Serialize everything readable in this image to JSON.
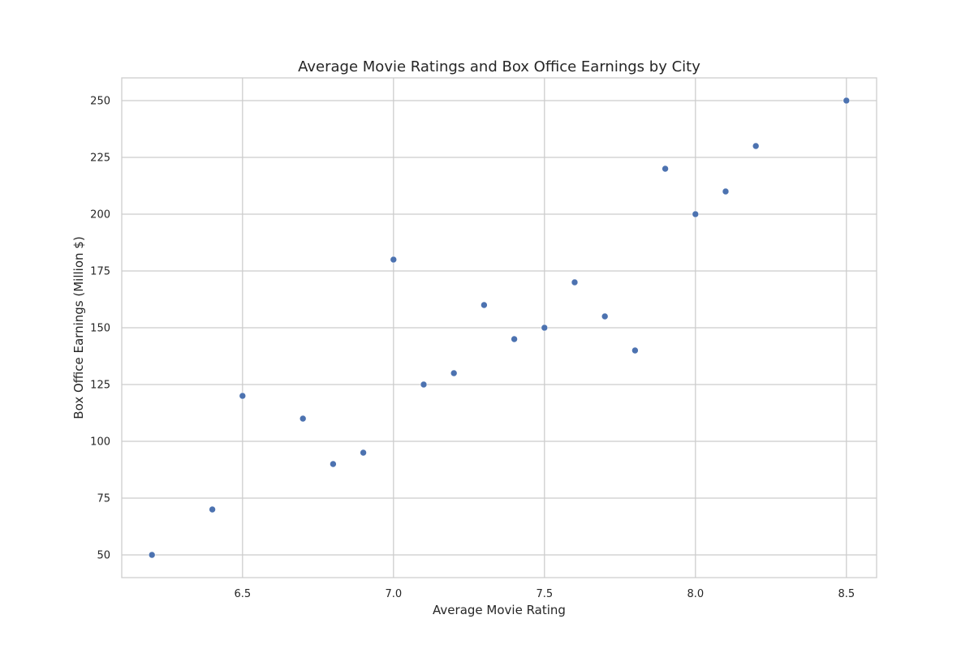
{
  "chart_data": {
    "type": "scatter",
    "title": "Average Movie Ratings and Box Office Earnings by City",
    "xlabel": "Average Movie Rating",
    "ylabel": "Box Office Earnings (Million $)",
    "xlim": [
      6.1,
      8.6
    ],
    "ylim": [
      40,
      260
    ],
    "xticks": [
      6.5,
      7.0,
      7.5,
      8.0,
      8.5
    ],
    "xtick_labels": [
      "6.5",
      "7.0",
      "7.5",
      "8.0",
      "8.5"
    ],
    "yticks": [
      50,
      75,
      100,
      125,
      150,
      175,
      200,
      225,
      250
    ],
    "ytick_labels": [
      "50",
      "75",
      "100",
      "125",
      "150",
      "175",
      "200",
      "225",
      "250"
    ],
    "grid": true,
    "colors": {
      "marker": "#4c72b0",
      "grid": "#cccccc",
      "spine": "#cccccc",
      "text": "#262626"
    },
    "points": [
      {
        "x": 6.2,
        "y": 50
      },
      {
        "x": 6.4,
        "y": 70
      },
      {
        "x": 6.5,
        "y": 120
      },
      {
        "x": 6.7,
        "y": 110
      },
      {
        "x": 6.8,
        "y": 90
      },
      {
        "x": 6.9,
        "y": 95
      },
      {
        "x": 7.0,
        "y": 180
      },
      {
        "x": 7.1,
        "y": 125
      },
      {
        "x": 7.2,
        "y": 130
      },
      {
        "x": 7.3,
        "y": 160
      },
      {
        "x": 7.4,
        "y": 145
      },
      {
        "x": 7.5,
        "y": 150
      },
      {
        "x": 7.6,
        "y": 170
      },
      {
        "x": 7.7,
        "y": 155
      },
      {
        "x": 7.8,
        "y": 140
      },
      {
        "x": 7.9,
        "y": 220
      },
      {
        "x": 8.0,
        "y": 200
      },
      {
        "x": 8.1,
        "y": 210
      },
      {
        "x": 8.2,
        "y": 230
      },
      {
        "x": 8.5,
        "y": 250
      }
    ]
  }
}
